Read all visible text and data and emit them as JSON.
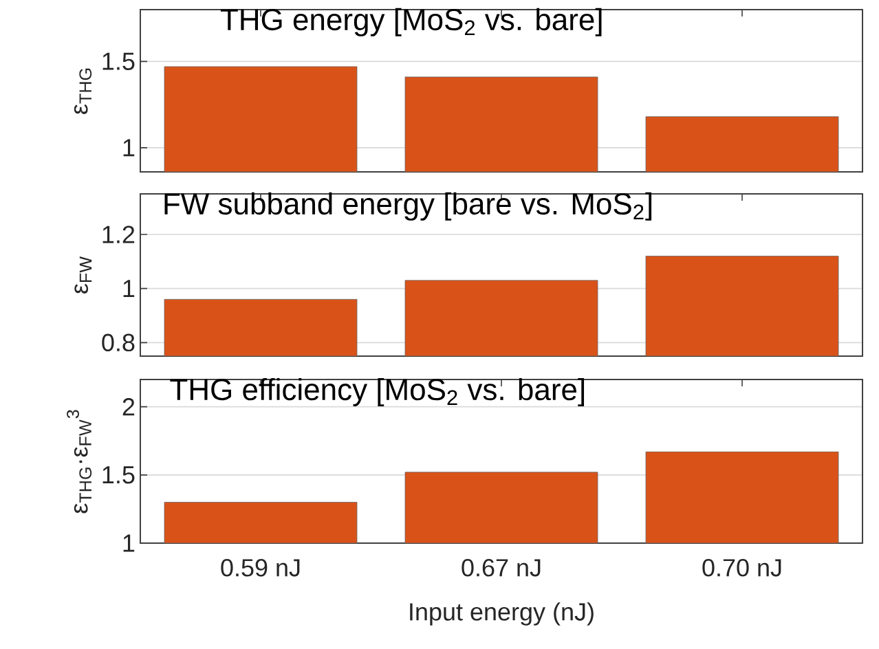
{
  "chart_data": [
    {
      "type": "bar",
      "title": "THG energy [MoS$_{2}$ vs. bare]",
      "ylabel": "ε$_{THG}$",
      "categories": [
        null,
        null,
        null
      ],
      "values": [
        1.47,
        1.41,
        1.18
      ],
      "color": "#d95319",
      "ylim": [
        0.86,
        1.8
      ],
      "yticks": [
        1,
        1.5
      ],
      "grid": "y",
      "tick_labels": "y"
    },
    {
      "type": "bar",
      "title": "FW subband energy [bare vs. MoS$_{2}$]",
      "ylabel": "ε$_{FW}$",
      "categories": [
        null,
        null,
        null
      ],
      "values": [
        0.96,
        1.03,
        1.12
      ],
      "color": "#d95319",
      "ylim": [
        0.75,
        1.35
      ],
      "yticks": [
        0.8,
        1,
        1.2
      ],
      "grid": "y",
      "tick_labels": "y"
    },
    {
      "type": "bar",
      "title": "THG efficiency [MoS$_{2}$ vs. bare]",
      "ylabel": "ε$_{THG}$·ε$_{FW}$$^{3}$",
      "xlabel": "Input energy (nJ)",
      "categories": [
        "0.59 nJ",
        "0.67 nJ",
        "0.70 nJ"
      ],
      "values": [
        1.3,
        1.52,
        1.67
      ],
      "color": "#d95319",
      "ylim": [
        1,
        2.2
      ],
      "yticks": [
        1,
        1.5,
        2
      ],
      "grid": "y"
    }
  ]
}
